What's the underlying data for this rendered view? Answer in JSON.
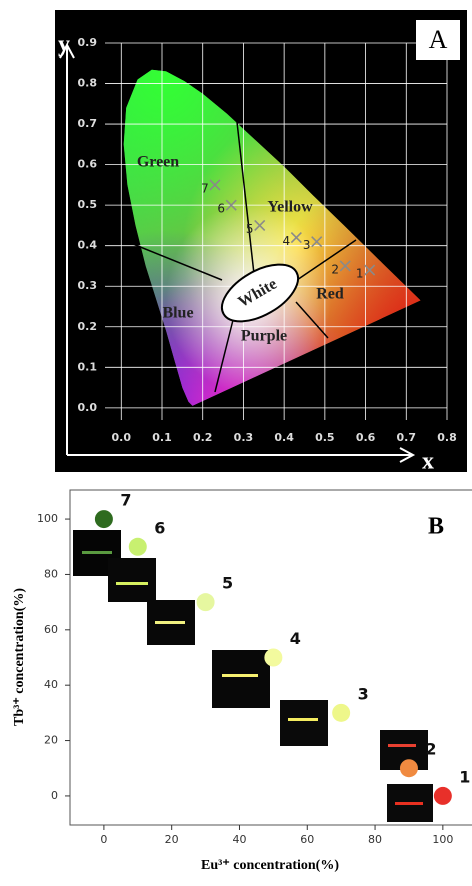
{
  "chart_data": [
    {
      "type": "scatter",
      "marker": "cross",
      "color": "#8a8a8a",
      "panel_label": "A",
      "xlabel": "x",
      "ylabel": "y",
      "xlim": [
        -0.04,
        0.8
      ],
      "ylim": [
        -0.03,
        0.9
      ],
      "xticks": [
        {
          "value": 0,
          "label": "0.0"
        },
        0.1,
        0.2,
        0.3,
        0.4,
        0.5,
        0.6,
        0.7,
        0.8
      ],
      "yticks": [
        {
          "value": 0,
          "label": "0.0"
        },
        0.1,
        0.2,
        0.3,
        0.4,
        0.5,
        0.6,
        0.7,
        0.8,
        0.9
      ],
      "grid": true,
      "regions": [
        "Green",
        "Yellow",
        "Red",
        "White",
        "Blue",
        "Purple"
      ],
      "points": [
        {
          "label": "1",
          "x": 0.61,
          "y": 0.34
        },
        {
          "label": "2",
          "x": 0.55,
          "y": 0.35
        },
        {
          "label": "3",
          "x": 0.48,
          "y": 0.41
        },
        {
          "label": "4",
          "x": 0.43,
          "y": 0.42
        },
        {
          "label": "5",
          "x": 0.34,
          "y": 0.45
        },
        {
          "label": "6",
          "x": 0.27,
          "y": 0.5
        },
        {
          "label": "7",
          "x": 0.23,
          "y": 0.55
        }
      ]
    },
    {
      "type": "scatter",
      "marker": "circle",
      "panel_label": "B",
      "xlabel": "Eu³⁺ concentration(%)",
      "ylabel": "Tb³⁺ concentration(%)",
      "xlim": [
        -10,
        108.6
      ],
      "ylim": [
        -10.5,
        110.5
      ],
      "xticks": [
        0,
        20,
        40,
        60,
        80,
        100
      ],
      "yticks": [
        0,
        20,
        40,
        60,
        80,
        100
      ],
      "points": [
        {
          "label": "1",
          "x": 100,
          "y": 0,
          "color": "#e8302a"
        },
        {
          "label": "2",
          "x": 90,
          "y": 10,
          "color": "#f08a40"
        },
        {
          "label": "3",
          "x": 70,
          "y": 30,
          "color": "#eef78a"
        },
        {
          "label": "4",
          "x": 50,
          "y": 50,
          "color": "#f3fa9e"
        },
        {
          "label": "5",
          "x": 30,
          "y": 70,
          "color": "#e6f7a0"
        },
        {
          "label": "6",
          "x": 10,
          "y": 90,
          "color": "#c8f070"
        },
        {
          "label": "7",
          "x": 0,
          "y": 100,
          "color": "#2e6b1f"
        }
      ]
    }
  ]
}
